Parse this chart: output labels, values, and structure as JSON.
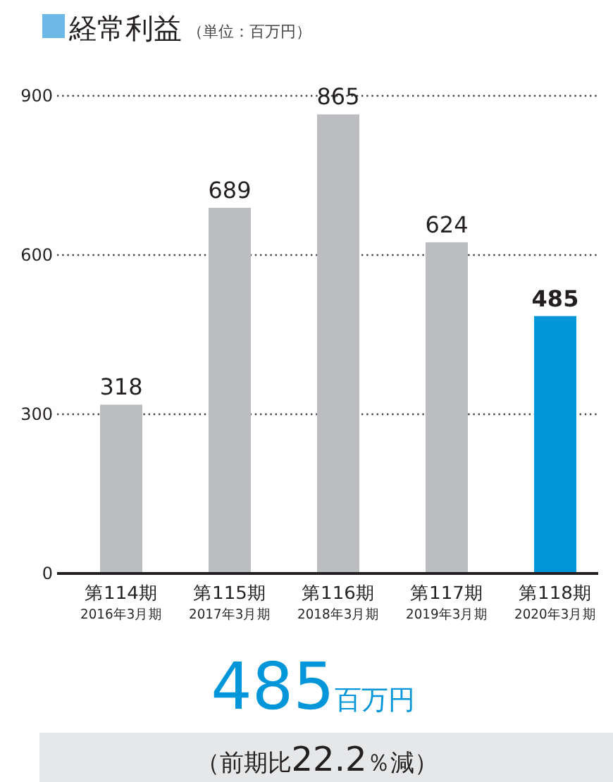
{
  "chart_data": {
    "type": "bar",
    "title": "経常利益",
    "subtitle": "（単位：百万円）",
    "categories": [
      "第114期\n2016年3月期",
      "第115期\n2017年3月期",
      "第116期\n2018年3月期",
      "第117期\n2019年3月期",
      "第118期\n2020年3月期"
    ],
    "values": [
      318,
      689,
      865,
      624,
      485
    ],
    "colors": [
      "#bcbdc0",
      "#bcbdc0",
      "#bcbdc0",
      "#bcbdc0",
      "#0096d9"
    ],
    "ylim": [
      0,
      900
    ],
    "yticks": [
      0,
      300,
      600,
      900
    ],
    "grid": "y",
    "data_labels": true,
    "annotations": [
      "485百万円",
      "（前期比22.2％減）"
    ]
  }
}
